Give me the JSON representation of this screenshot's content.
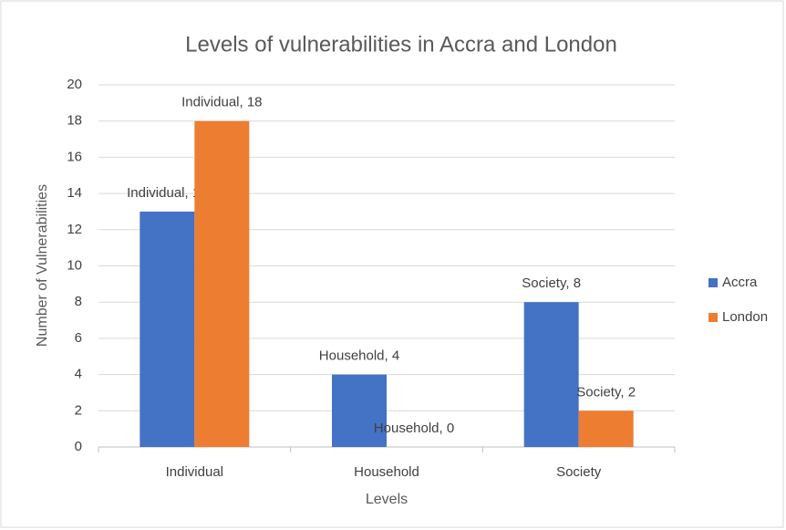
{
  "chart_data": {
    "type": "bar",
    "title": "Levels of vulnerabilities in Accra and London",
    "x_label": "Levels",
    "y_label": "Number of Vulnerabilities",
    "categories": [
      "Individual",
      "Household",
      "Society"
    ],
    "series": [
      {
        "name": "Accra",
        "color": "#4472c4",
        "values": [
          13,
          4,
          8
        ],
        "value_labels": [
          "Individual, 13",
          "Household, 4",
          "Society, 8"
        ]
      },
      {
        "name": "London",
        "color": "#ed7d31",
        "values": [
          18,
          0,
          2
        ],
        "value_labels": [
          "Individual, 18",
          "Household, 0",
          "Society, 2"
        ]
      }
    ],
    "ylim": [
      0,
      20
    ],
    "yticks": [
      0,
      2,
      4,
      6,
      8,
      10,
      12,
      14,
      16,
      18,
      20
    ],
    "grid": true,
    "legend": "right"
  }
}
